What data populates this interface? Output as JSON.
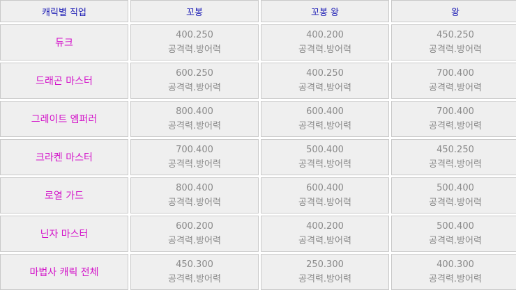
{
  "headers": [
    "캐릭별 직업",
    "꼬봉",
    "꼬봉 왕",
    "왕"
  ],
  "stat_label": "공격력.방어력",
  "rows": [
    {
      "job": "듀크",
      "values": [
        "400.250",
        "400.200",
        "450.250"
      ]
    },
    {
      "job": "드래곤 마스터",
      "values": [
        "600.250",
        "400.250",
        "700.400"
      ]
    },
    {
      "job": "그레이트 엠퍼러",
      "values": [
        "800.400",
        "600.400",
        "700.400"
      ]
    },
    {
      "job": "크라켄 마스터",
      "values": [
        "700.400",
        "500.400",
        "450.250"
      ]
    },
    {
      "job": "로열 가드",
      "values": [
        "800.400",
        "600.400",
        "500.400"
      ]
    },
    {
      "job": "닌자 마스터",
      "values": [
        "600.200",
        "400.200",
        "500.400"
      ]
    },
    {
      "job": "마법사 캐릭 전체",
      "values": [
        "450.300",
        "250.300",
        "400.300"
      ]
    }
  ]
}
